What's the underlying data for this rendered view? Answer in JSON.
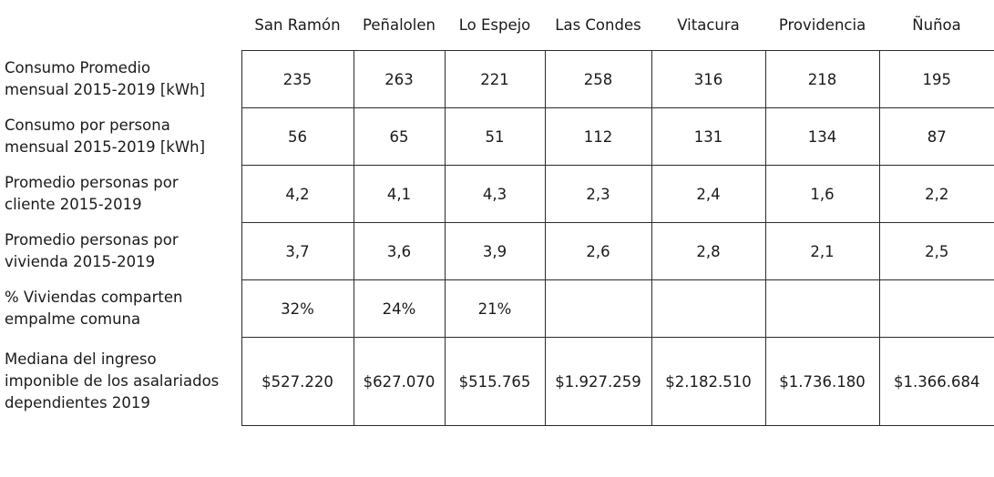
{
  "columns": [
    "San Ramón",
    "Peñalolen",
    "Lo Espejo",
    "Las Condes",
    "Vitacura",
    "Providencia",
    "Ñuñoa"
  ],
  "rows": [
    {
      "label_lines": [
        "Consumo Promedio",
        "mensual 2015-2019 [kWh]"
      ],
      "values": [
        "235",
        "263",
        "221",
        "258",
        "316",
        "218",
        "195"
      ]
    },
    {
      "label_lines": [
        "Consumo por persona",
        "mensual 2015-2019 [kWh]"
      ],
      "values": [
        "56",
        "65",
        "51",
        "112",
        "131",
        "134",
        "87"
      ]
    },
    {
      "label_lines": [
        "Promedio personas por",
        "cliente 2015-2019"
      ],
      "values": [
        "4,2",
        "4,1",
        "4,3",
        "2,3",
        "2,4",
        "1,6",
        "2,2"
      ]
    },
    {
      "label_lines": [
        "Promedio personas por",
        "vivienda 2015-2019"
      ],
      "values": [
        "3,7",
        "3,6",
        "3,9",
        "2,6",
        "2,8",
        "2,1",
        "2,5"
      ]
    },
    {
      "label_lines": [
        "% Viviendas comparten",
        "empalme comuna"
      ],
      "values": [
        "32%",
        "24%",
        "21%",
        "",
        "",
        "",
        ""
      ]
    },
    {
      "label_lines": [
        "Mediana del ingreso",
        "imponible de los asalariados",
        "dependientes 2019"
      ],
      "values": [
        "$527.220",
        "$627.070",
        "$515.765",
        "$1.927.259",
        "$2.182.510",
        "$1.736.180",
        "$1.366.684"
      ]
    }
  ]
}
